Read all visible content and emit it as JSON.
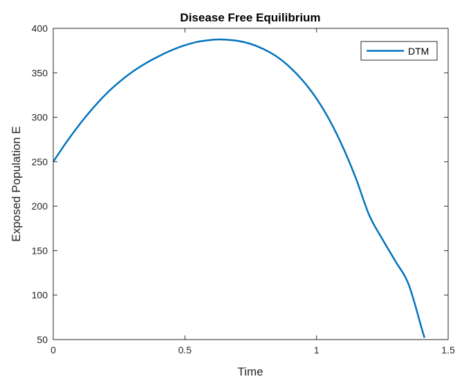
{
  "chart_data": {
    "type": "line",
    "title": "Disease Free Equilibrium",
    "xlabel": "Time",
    "ylabel": "Exposed Population E",
    "xlim": [
      0,
      1.5
    ],
    "ylim": [
      50,
      400
    ],
    "xticks": [
      0,
      0.5,
      1,
      1.5
    ],
    "xtick_labels": [
      "0",
      "0.5",
      "1",
      "1.5"
    ],
    "yticks": [
      50,
      100,
      150,
      200,
      250,
      300,
      350,
      400
    ],
    "ytick_labels": [
      "50",
      "100",
      "150",
      "200",
      "250",
      "300",
      "350",
      "400"
    ],
    "grid": false,
    "legend_position": "top-right",
    "series": [
      {
        "name": "DTM",
        "color": "#0072bd",
        "x": [
          0,
          0.05,
          0.1,
          0.15,
          0.2,
          0.25,
          0.3,
          0.35,
          0.4,
          0.45,
          0.5,
          0.55,
          0.6,
          0.64,
          0.7,
          0.75,
          0.8,
          0.85,
          0.9,
          0.95,
          1.0,
          1.05,
          1.1,
          1.15,
          1.2,
          1.25,
          1.3,
          1.35,
          1.4,
          1.41
        ],
        "y": [
          250,
          272,
          292,
          310,
          326,
          339.5,
          351,
          360.5,
          368.5,
          375.5,
          381,
          385,
          387,
          387.5,
          386,
          382.5,
          376.5,
          368,
          356,
          340.5,
          321,
          296.5,
          266.5,
          231,
          190,
          163,
          138,
          112,
          62,
          52
        ]
      }
    ]
  }
}
